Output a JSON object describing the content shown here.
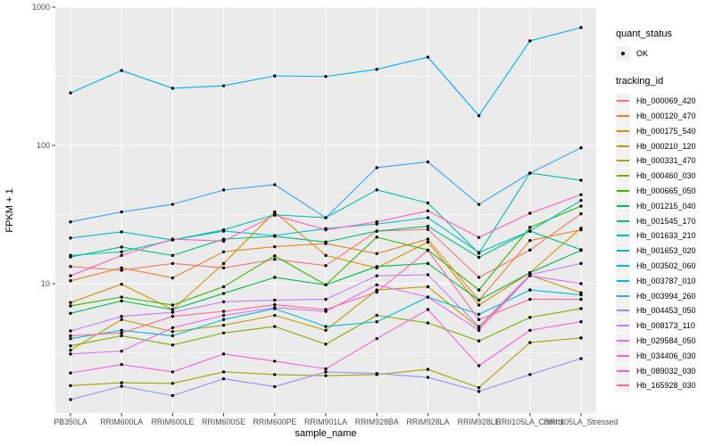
{
  "chart_data": {
    "type": "line",
    "title": "",
    "xlabel": "sample_name",
    "ylabel": "FPKM + 1",
    "y_scale": "log10",
    "y_ticks": [
      10,
      100,
      1000
    ],
    "y_minor_breaks": [
      3.1623,
      31.623,
      316.23
    ],
    "ylim": [
      1.16,
      955
    ],
    "grid": "on",
    "legend_position": "right",
    "categories": [
      "PB350LA",
      "RRIM600LA",
      "RRIM600LE",
      "RRIM600SE",
      "RRIM600PE",
      "RRIM901LA",
      "RRIM928BA",
      "RRIM928LA",
      "RRIM928LE",
      "RRII105LA_Control",
      "RRII105LA_Stressed"
    ],
    "legend": {
      "quant_status_title": "quant_status",
      "quant_status_item": "OK",
      "quant_status_marker": "black-point",
      "tracking_id_title": "tracking_id"
    },
    "style": {
      "panel_bg": "#EBEBEB",
      "grid_color": "#FFFFFF",
      "point_color": "#000000",
      "tick_color": "#333333",
      "tick_label_color": "#4D4D4D"
    },
    "series": [
      {
        "name": "Hb_000069_420",
        "color": "#F8766D",
        "values": [
          13.3,
          12.5,
          14,
          13,
          15,
          13.5,
          24,
          24.7,
          11.1,
          17.5,
          32
        ]
      },
      {
        "name": "Hb_000120_470",
        "color": "#EA8331",
        "values": [
          10.5,
          13,
          11,
          17,
          18.5,
          19.5,
          16.5,
          21,
          7.6,
          20.5,
          24.5
        ]
      },
      {
        "name": "Hb_000175_540",
        "color": "#D89000",
        "values": [
          7.3,
          9.9,
          6.5,
          14,
          33,
          16,
          13,
          20,
          7.0,
          12,
          25.2
        ]
      },
      {
        "name": "Hb_000210_120",
        "color": "#C09B00",
        "values": [
          3.3,
          5.5,
          4.5,
          5.0,
          5.9,
          4.6,
          9.0,
          9.5,
          4.8,
          11.5,
          8.6
        ]
      },
      {
        "name": "Hb_000331_470",
        "color": "#A3A500",
        "values": [
          1.83,
          1.92,
          1.9,
          2.3,
          2.2,
          2.16,
          2.2,
          2.4,
          1.77,
          3.75,
          4.05
        ]
      },
      {
        "name": "Hb_000460_030",
        "color": "#7CAE00",
        "values": [
          3.55,
          4.2,
          3.6,
          4.4,
          4.9,
          3.65,
          5.9,
          5.2,
          3.85,
          5.7,
          6.6
        ]
      },
      {
        "name": "Hb_000665_050",
        "color": "#39B600",
        "values": [
          6.9,
          8.0,
          7.0,
          9.5,
          15.9,
          9.8,
          21.7,
          17.5,
          9.0,
          25.5,
          36.4
        ]
      },
      {
        "name": "Hb_001215_040",
        "color": "#00BB4E",
        "values": [
          6.1,
          7.5,
          6.5,
          8.5,
          11.1,
          9.8,
          13.3,
          14,
          7.6,
          12,
          17.4
        ]
      },
      {
        "name": "Hb_001545_170",
        "color": "#00BF7D",
        "values": [
          15.6,
          18.4,
          16,
          21,
          22,
          20,
          24,
          26,
          15.5,
          24,
          17.6
        ]
      },
      {
        "name": "Hb_001633_210",
        "color": "#00C1A3",
        "values": [
          16,
          17,
          20.7,
          24.5,
          31.5,
          30,
          47.7,
          38.3,
          16.6,
          63,
          56
        ]
      },
      {
        "name": "Hb_001653_020",
        "color": "#00BFC4",
        "values": [
          21.4,
          23.7,
          20.7,
          24,
          22.3,
          25,
          27,
          30,
          16.8,
          24,
          40
        ]
      },
      {
        "name": "Hb_003502_060",
        "color": "#00BAE0",
        "values": [
          4.0,
          4.6,
          4.2,
          5.5,
          6.6,
          4.9,
          5.3,
          8.0,
          6.0,
          9.0,
          8.3
        ]
      },
      {
        "name": "Hb_003787_010",
        "color": "#00B0F6",
        "values": [
          240,
          348,
          259,
          270,
          318,
          315,
          355,
          435,
          164,
          570,
          712
        ]
      },
      {
        "name": "Hb_003994_260",
        "color": "#35A2FF",
        "values": [
          28,
          33,
          37.5,
          47.6,
          52,
          30,
          69,
          76,
          37.4,
          63,
          96
        ]
      },
      {
        "name": "Hb_004453_050",
        "color": "#9590FF",
        "values": [
          1.45,
          1.81,
          1.55,
          2.05,
          1.8,
          2.3,
          2.24,
          2.1,
          1.66,
          2.2,
          2.87
        ]
      },
      {
        "name": "Hb_008173_110",
        "color": "#C77CFF",
        "values": [
          4.55,
          5.8,
          6.2,
          7.4,
          7.6,
          7.7,
          11.4,
          11.6,
          4.9,
          11.6,
          14
        ]
      },
      {
        "name": "Hb_029584_050",
        "color": "#E76BF3",
        "values": [
          3.1,
          3.25,
          4.8,
          5.9,
          6.7,
          6.3,
          9.8,
          8.0,
          4.6,
          11.4,
          10
        ]
      },
      {
        "name": "Hb_034406_030",
        "color": "#FA62DB",
        "values": [
          2.26,
          2.6,
          2.3,
          3.1,
          2.75,
          2.42,
          4.0,
          6.5,
          2.55,
          4.6,
          5.3
        ]
      },
      {
        "name": "Hb_089032_030",
        "color": "#FF62BC",
        "values": [
          11.4,
          16,
          21,
          20.3,
          31.3,
          24.5,
          28,
          33.6,
          21.6,
          32.3,
          44
        ]
      },
      {
        "name": "Hb_165928_030",
        "color": "#FF6A98",
        "values": [
          4.2,
          4.4,
          5.8,
          6.3,
          7.05,
          6.5,
          8.7,
          17.4,
          5.5,
          7.7,
          7.7
        ]
      }
    ]
  }
}
